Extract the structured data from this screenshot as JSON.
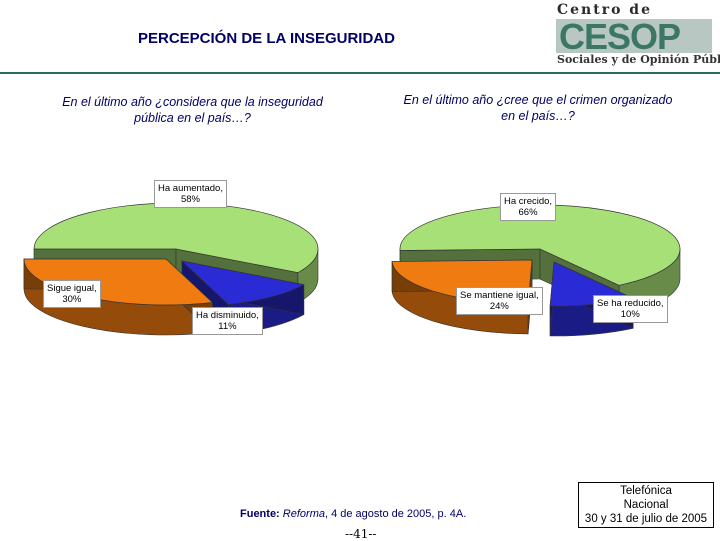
{
  "page": {
    "title": "PERCEPCIÓN DE LA INSEGURIDAD",
    "logo": {
      "top_text": "Centro de Estudios",
      "big_text": "CESOP",
      "bottom_text": "Sociales y de Opinión Pública"
    },
    "source_label": "Fuente:",
    "source_reference": "Reforma",
    "source_rest": ", 4 de agosto de 2005, p. 4A.",
    "page_number": "--41--",
    "note": [
      "Telefónica",
      "Nacional",
      "30 y 31 de julio de 2005"
    ]
  },
  "chart_data": [
    {
      "type": "pie",
      "title": "En el último año ¿considera que la inseguridad pública en el país…?",
      "slices": [
        {
          "label": "Ha aumentado,",
          "value": 58,
          "value_label": "58%",
          "color": "#a8e078"
        },
        {
          "label": "Ha disminuido,",
          "value": 11,
          "value_label": "11%",
          "color": "#2b2bd6"
        },
        {
          "label": "Sigue igual,",
          "value": 30,
          "value_label": "30%",
          "color": "#f07b10"
        }
      ]
    },
    {
      "type": "pie",
      "title": "En el último año ¿cree que el crimen organizado en el país…?",
      "slices": [
        {
          "label": "Ha crecido,",
          "value": 66,
          "value_label": "66%",
          "color": "#a8e078"
        },
        {
          "label": "Se ha reducido,",
          "value": 10,
          "value_label": "10%",
          "color": "#2b2bd6"
        },
        {
          "label": "Se mantiene igual,",
          "value": 24,
          "value_label": "24%",
          "color": "#f07b10"
        }
      ]
    }
  ]
}
